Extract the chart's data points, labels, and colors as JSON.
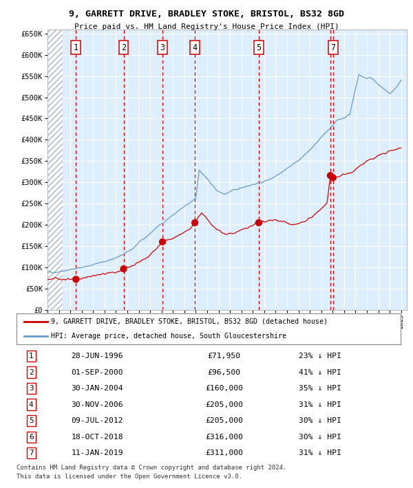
{
  "title": "9, GARRETT DRIVE, BRADLEY STOKE, BRISTOL, BS32 8GD",
  "subtitle": "Price paid vs. HM Land Registry's House Price Index (HPI)",
  "legend_line1": "9, GARRETT DRIVE, BRADLEY STOKE, BRISTOL, BS32 8GD (detached house)",
  "legend_line2": "HPI: Average price, detached house, South Gloucestershire",
  "footnote1": "Contains HM Land Registry data © Crown copyright and database right 2024.",
  "footnote2": "This data is licensed under the Open Government Licence v3.0.",
  "sales": [
    {
      "num": 1,
      "x": 1996.49,
      "price": 71950
    },
    {
      "num": 2,
      "x": 2000.67,
      "price": 96500
    },
    {
      "num": 3,
      "x": 2004.08,
      "price": 160000
    },
    {
      "num": 4,
      "x": 2006.92,
      "price": 205000
    },
    {
      "num": 5,
      "x": 2012.52,
      "price": 205000
    },
    {
      "num": 6,
      "x": 2018.8,
      "price": 316000
    },
    {
      "num": 7,
      "x": 2019.03,
      "price": 311000
    }
  ],
  "box_sales": [
    1,
    2,
    3,
    4,
    5,
    7
  ],
  "table_rows": [
    {
      "num": 1,
      "date": "28-JUN-1996",
      "price": "£71,950",
      "pct": "23% ↓ HPI"
    },
    {
      "num": 2,
      "date": "01-SEP-2000",
      "price": "£96,500",
      "pct": "41% ↓ HPI"
    },
    {
      "num": 3,
      "date": "30-JAN-2004",
      "price": "£160,000",
      "pct": "35% ↓ HPI"
    },
    {
      "num": 4,
      "date": "30-NOV-2006",
      "price": "£205,000",
      "pct": "31% ↓ HPI"
    },
    {
      "num": 5,
      "date": "09-JUL-2012",
      "price": "£205,000",
      "pct": "30% ↓ HPI"
    },
    {
      "num": 6,
      "date": "18-OCT-2018",
      "price": "£316,000",
      "pct": "30% ↓ HPI"
    },
    {
      "num": 7,
      "date": "11-JAN-2019",
      "price": "£311,000",
      "pct": "31% ↓ HPI"
    }
  ],
  "hpi_color": "#6699cc",
  "sale_color": "#cc0000",
  "vline_color": "#cc0000",
  "bg_color": "#ddeeff",
  "ylim": [
    0,
    660000
  ],
  "xlim_start": 1994.0,
  "xlim_end": 2025.5,
  "hpi_anchors_x": [
    1994.0,
    1994.5,
    1995.0,
    1995.5,
    1996.0,
    1996.5,
    1997.0,
    1997.5,
    1998.0,
    1998.5,
    1999.0,
    1999.5,
    2000.0,
    2000.5,
    2001.0,
    2001.5,
    2002.0,
    2002.5,
    2003.0,
    2003.5,
    2004.0,
    2004.5,
    2005.0,
    2005.5,
    2006.0,
    2006.5,
    2007.0,
    2007.3,
    2007.6,
    2008.0,
    2008.5,
    2009.0,
    2009.5,
    2010.0,
    2010.5,
    2011.0,
    2011.5,
    2012.0,
    2012.5,
    2013.0,
    2013.5,
    2014.0,
    2014.5,
    2015.0,
    2015.5,
    2016.0,
    2016.5,
    2017.0,
    2017.5,
    2018.0,
    2018.5,
    2019.0,
    2019.5,
    2020.0,
    2020.5,
    2021.0,
    2021.3,
    2021.6,
    2022.0,
    2022.3,
    2022.6,
    2023.0,
    2023.5,
    2024.0,
    2024.5,
    2025.0
  ],
  "hpi_anchors_y": [
    88000,
    89000,
    90000,
    93000,
    95000,
    97000,
    100000,
    103000,
    107000,
    110000,
    114000,
    118000,
    122000,
    128000,
    136000,
    145000,
    157000,
    168000,
    180000,
    192000,
    203000,
    213000,
    223000,
    233000,
    242000,
    252000,
    263000,
    330000,
    320000,
    308000,
    290000,
    278000,
    272000,
    278000,
    282000,
    288000,
    292000,
    295000,
    298000,
    302000,
    308000,
    315000,
    325000,
    333000,
    342000,
    352000,
    363000,
    376000,
    390000,
    405000,
    420000,
    435000,
    448000,
    452000,
    460000,
    520000,
    555000,
    548000,
    545000,
    548000,
    540000,
    532000,
    518000,
    508000,
    520000,
    540000
  ],
  "red_anchors_x": [
    1994.0,
    1994.5,
    1995.0,
    1995.5,
    1996.0,
    1996.49,
    1996.8,
    1997.3,
    1997.8,
    1998.3,
    1998.8,
    1999.3,
    1999.8,
    2000.3,
    2000.67,
    2001.0,
    2001.5,
    2002.0,
    2002.5,
    2003.0,
    2003.5,
    2004.08,
    2004.5,
    2005.0,
    2005.5,
    2006.0,
    2006.5,
    2006.92,
    2007.2,
    2007.5,
    2007.8,
    2008.1,
    2008.4,
    2008.7,
    2009.0,
    2009.3,
    2009.6,
    2010.0,
    2010.5,
    2011.0,
    2011.5,
    2012.0,
    2012.52,
    2013.0,
    2013.5,
    2014.0,
    2014.5,
    2015.0,
    2015.5,
    2016.0,
    2016.5,
    2017.0,
    2017.5,
    2018.0,
    2018.5,
    2018.8,
    2019.03,
    2019.3,
    2019.6,
    2020.0,
    2020.3,
    2020.6,
    2021.0,
    2021.5,
    2022.0,
    2022.5,
    2023.0,
    2023.5,
    2024.0,
    2024.5,
    2025.0
  ],
  "red_anchors_y": [
    72000,
    73000,
    73500,
    72000,
    71000,
    71950,
    73000,
    76000,
    79000,
    82000,
    84000,
    86000,
    88000,
    90000,
    96500,
    100000,
    105000,
    112000,
    120000,
    130000,
    143000,
    160000,
    165000,
    170000,
    175000,
    182000,
    192000,
    205000,
    218000,
    228000,
    222000,
    210000,
    200000,
    193000,
    188000,
    182000,
    178000,
    180000,
    182000,
    188000,
    193000,
    198000,
    205000,
    207000,
    210000,
    212000,
    208000,
    205000,
    200000,
    202000,
    207000,
    215000,
    225000,
    238000,
    252000,
    316000,
    311000,
    312000,
    315000,
    318000,
    320000,
    322000,
    330000,
    340000,
    350000,
    355000,
    362000,
    370000,
    375000,
    378000,
    382000
  ]
}
